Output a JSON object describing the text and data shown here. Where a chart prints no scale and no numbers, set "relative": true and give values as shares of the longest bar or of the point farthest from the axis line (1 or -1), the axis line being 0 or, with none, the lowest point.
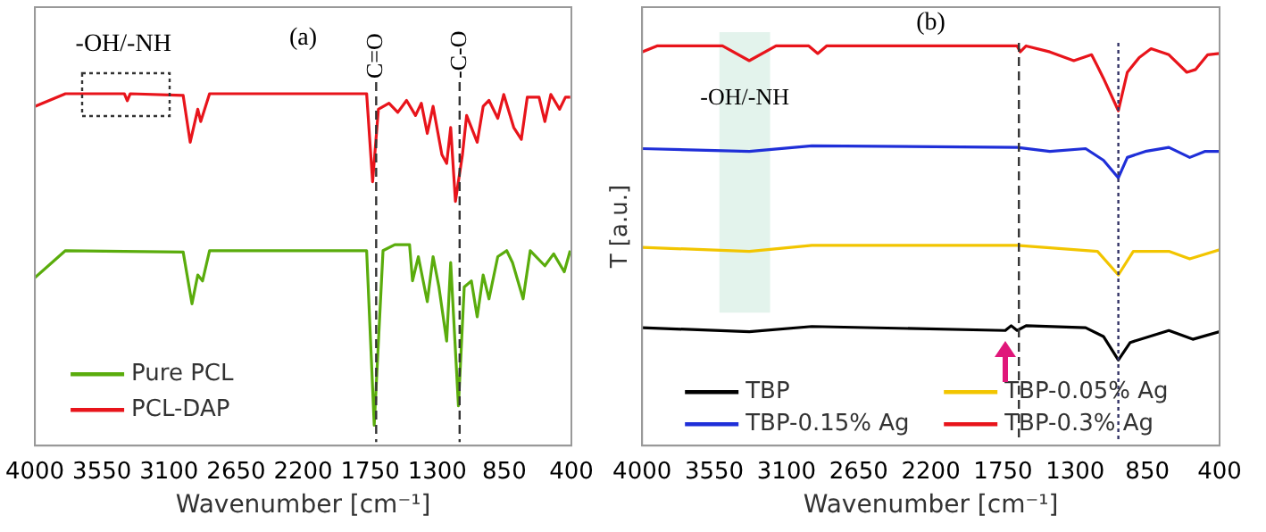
{
  "chart_data": [
    {
      "type": "line",
      "relative": true,
      "xlabel": "Wavenumber [cm⁻¹]",
      "xlim": [
        4000,
        400
      ],
      "xticks": [
        4000,
        3550,
        3100,
        2650,
        2200,
        1750,
        1300,
        850,
        400
      ],
      "legend": "bottom left",
      "annotations": [
        "(a)",
        "-OH/-NH"
      ],
      "ref_lines": [
        {
          "axis": "x",
          "value": 1710,
          "label": "C=O",
          "line_style": "dashed",
          "color": "#333333"
        },
        {
          "axis": "x",
          "value": 1150,
          "label": "-C-O",
          "line_style": "dashed",
          "color": "#333333"
        }
      ],
      "series": [
        {
          "name": "Pure PCL",
          "color": "#5aac0c",
          "x": [
            4000,
            3795,
            3005,
            2946,
            2907,
            2875,
            2828,
            1774,
            1723,
            1664,
            1585,
            1486,
            1466,
            1427,
            1367,
            1328,
            1289,
            1237,
            1210,
            1158,
            1119,
            1071,
            1032,
            992,
            953,
            894,
            834,
            795,
            724,
            676,
            578,
            519,
            448,
            408
          ],
          "values": [
            0.477,
            0.554,
            0.55,
            0.403,
            0.485,
            0.468,
            0.554,
            0.554,
            0.058,
            0.554,
            0.571,
            0.571,
            0.468,
            0.537,
            0.409,
            0.537,
            0.451,
            0.297,
            0.52,
            0.113,
            0.451,
            0.468,
            0.366,
            0.485,
            0.417,
            0.537,
            0.554,
            0.52,
            0.417,
            0.554,
            0.511,
            0.545,
            0.494,
            0.554
          ]
        },
        {
          "name": "PCL-DAP",
          "color": "#e8141b",
          "x": [
            4000,
            3795,
            3400,
            3380,
            3360,
            3005,
            2958,
            2907,
            2887,
            2828,
            1774,
            1734,
            1695,
            1624,
            1565,
            1506,
            1446,
            1407,
            1367,
            1328,
            1269,
            1237,
            1210,
            1178,
            1131,
            1103,
            1071,
            1032,
            992,
            953,
            894,
            854,
            787,
            736,
            696,
            617,
            578,
            538,
            479,
            440,
            408
          ],
          "values": [
            0.964,
            1,
            1,
            0.98,
            1,
            0.995,
            0.862,
            0.956,
            0.921,
            1,
            1,
            0.75,
            0.956,
            0.973,
            0.947,
            0.981,
            0.938,
            0.973,
            0.887,
            0.964,
            0.827,
            0.802,
            0.904,
            0.694,
            0.827,
            0.938,
            0.904,
            0.862,
            0.964,
            0.981,
            0.93,
            0.998,
            0.904,
            0.87,
            0.99,
            0.99,
            0.921,
            0.998,
            0.956,
            0.99,
            0.99
          ]
        }
      ]
    },
    {
      "type": "line",
      "relative": true,
      "xlabel": "Wavenumber [cm⁻¹]",
      "ylabel": "T [a.u.]",
      "xlim": [
        4000,
        400
      ],
      "xticks": [
        4000,
        3550,
        3100,
        2650,
        2200,
        1750,
        1300,
        850,
        400
      ],
      "legend": "bottom",
      "annotations": [
        "(b)"
      ],
      "bands": [
        {
          "axis": "x",
          "from": 3518,
          "to": 3202,
          "label": "-OH/-NH",
          "color": "#e3f3ec"
        }
      ],
      "ref_lines": [
        {
          "axis": "x",
          "value": 1651,
          "line_style": "dashed",
          "color": "#333333"
        },
        {
          "axis": "x",
          "value": 1031,
          "line_style": "dotted",
          "color": "#333366"
        }
      ],
      "series": [
        {
          "name": "TBP",
          "color": "#000000",
          "x": [
            4000,
            3332,
            2942,
            1736,
            1699,
            1662,
            1606,
            1235,
            1124,
            1031,
            957,
            716,
            567,
            400
          ],
          "values": [
            0.295,
            0.285,
            0.298,
            0.288,
            0.3,
            0.288,
            0.3,
            0.295,
            0.273,
            0.214,
            0.258,
            0.288,
            0.266,
            0.285
          ]
        },
        {
          "name": "TBP-0.05% Ag",
          "color": "#f2c500",
          "x": [
            4000,
            3332,
            2942,
            1662,
            1161,
            1031,
            938,
            716,
            586,
            400
          ],
          "values": [
            0.496,
            0.486,
            0.501,
            0.501,
            0.486,
            0.427,
            0.486,
            0.486,
            0.467,
            0.49
          ]
        },
        {
          "name": "TBP-0.15% Ag",
          "color": "#1f2fd8",
          "x": [
            4000,
            3332,
            2942,
            1662,
            1458,
            1235,
            1124,
            1031,
            975,
            864,
            716,
            586,
            493,
            400
          ],
          "values": [
            0.743,
            0.736,
            0.75,
            0.746,
            0.736,
            0.743,
            0.714,
            0.67,
            0.721,
            0.736,
            0.746,
            0.721,
            0.736,
            0.736
          ]
        },
        {
          "name": "TBP-0.3% Ag",
          "color": "#e8141b",
          "x": [
            4000,
            3907,
            3499,
            3332,
            3165,
            2961,
            2905,
            2850,
            1662,
            1643,
            1606,
            1458,
            1309,
            1198,
            1161,
            1124,
            1031,
            975,
            901,
            827,
            716,
            604,
            549,
            474,
            400
          ],
          "values": [
            0.985,
            1,
            1,
            0.963,
            1,
            1,
            0.981,
            1,
            1,
            0.985,
            1,
            0.985,
            0.963,
            0.978,
            0.949,
            0.919,
            0.838,
            0.934,
            0.971,
            0.993,
            0.978,
            0.934,
            0.941,
            0.978,
            0.981
          ]
        }
      ]
    }
  ]
}
